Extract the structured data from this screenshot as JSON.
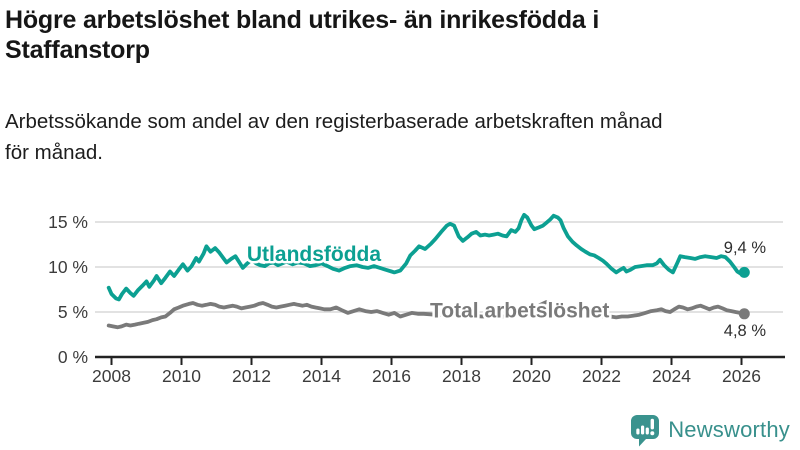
{
  "header": {
    "title_lines": [
      "Högre arbetslöshet bland utrikes- än inrikesfödda i",
      "Staffanstorp"
    ],
    "subtitle_lines": [
      "Arbetssökande som andel av den registerbaserade arbetskraften månad",
      "för månad."
    ]
  },
  "footer": {
    "brand": "Newsworthy",
    "brand_color": "#38908c",
    "logo_icon": "speech-bubble-bar-chart-exclamation"
  },
  "colors": {
    "foreign_born_line": "#0ca092",
    "total_line": "#7a7a7a",
    "grid": "#d9d9d9",
    "axis": "#222222",
    "tick_label": "#3c3c3c",
    "value_label": "#2e2e2e"
  },
  "chart_data": {
    "type": "line",
    "title": "Högre arbetslöshet bland utrikes- än inrikesfödda i Staffanstorp",
    "subtitle": "Arbetssökande som andel av den registerbaserade arbetskraften månad för månad.",
    "xlabel": "",
    "ylabel": "",
    "grid": "horizontal",
    "legend_position": "inline-labels",
    "xlim": [
      2007.5,
      2027.2
    ],
    "ylim": [
      0,
      16.5
    ],
    "x_ticks": [
      2008,
      2010,
      2012,
      2014,
      2016,
      2018,
      2020,
      2022,
      2024,
      2026
    ],
    "x_tick_labels": [
      "2008",
      "2010",
      "2012",
      "2014",
      "2016",
      "2018",
      "2020",
      "2022",
      "2024",
      "2026"
    ],
    "y_ticks": [
      0,
      5,
      10,
      15
    ],
    "y_tick_labels": [
      "0 %",
      "5 %",
      "10 %",
      "15 %"
    ],
    "series": [
      {
        "name": "Utlandsfödda",
        "color": "#0ca092",
        "end_value": 9.4,
        "end_label": "9,4 %",
        "points": [
          [
            2007.92,
            7.7
          ],
          [
            2008.0,
            7.0
          ],
          [
            2008.13,
            6.5
          ],
          [
            2008.21,
            6.4
          ],
          [
            2008.3,
            7.0
          ],
          [
            2008.42,
            7.6
          ],
          [
            2008.54,
            7.1
          ],
          [
            2008.63,
            6.8
          ],
          [
            2008.75,
            7.4
          ],
          [
            2008.88,
            7.9
          ],
          [
            2009.0,
            8.4
          ],
          [
            2009.08,
            7.8
          ],
          [
            2009.21,
            8.5
          ],
          [
            2009.29,
            9.0
          ],
          [
            2009.42,
            8.2
          ],
          [
            2009.54,
            8.8
          ],
          [
            2009.67,
            9.5
          ],
          [
            2009.79,
            9.0
          ],
          [
            2009.92,
            9.7
          ],
          [
            2010.04,
            10.3
          ],
          [
            2010.17,
            9.6
          ],
          [
            2010.29,
            10.1
          ],
          [
            2010.42,
            11.0
          ],
          [
            2010.5,
            10.6
          ],
          [
            2010.63,
            11.5
          ],
          [
            2010.71,
            12.3
          ],
          [
            2010.83,
            11.7
          ],
          [
            2010.96,
            12.1
          ],
          [
            2011.08,
            11.6
          ],
          [
            2011.21,
            10.9
          ],
          [
            2011.29,
            10.5
          ],
          [
            2011.42,
            10.9
          ],
          [
            2011.54,
            11.2
          ],
          [
            2011.67,
            10.4
          ],
          [
            2011.75,
            9.9
          ],
          [
            2011.88,
            10.4
          ],
          [
            2012.0,
            10.8
          ],
          [
            2012.13,
            10.4
          ],
          [
            2012.25,
            10.2
          ],
          [
            2012.38,
            10.1
          ],
          [
            2012.5,
            10.4
          ],
          [
            2012.63,
            10.5
          ],
          [
            2012.75,
            10.2
          ],
          [
            2012.88,
            10.4
          ],
          [
            2013.0,
            10.6
          ],
          [
            2013.17,
            10.3
          ],
          [
            2013.33,
            10.5
          ],
          [
            2013.5,
            10.4
          ],
          [
            2013.67,
            10.1
          ],
          [
            2013.83,
            10.2
          ],
          [
            2014.0,
            10.4
          ],
          [
            2014.17,
            10.1
          ],
          [
            2014.33,
            9.8
          ],
          [
            2014.5,
            9.6
          ],
          [
            2014.67,
            9.9
          ],
          [
            2014.83,
            10.1
          ],
          [
            2015.0,
            10.2
          ],
          [
            2015.17,
            10.0
          ],
          [
            2015.33,
            9.9
          ],
          [
            2015.5,
            10.1
          ],
          [
            2015.67,
            9.9
          ],
          [
            2015.83,
            9.7
          ],
          [
            2016.0,
            9.5
          ],
          [
            2016.08,
            9.4
          ],
          [
            2016.25,
            9.6
          ],
          [
            2016.42,
            10.4
          ],
          [
            2016.54,
            11.3
          ],
          [
            2016.67,
            11.8
          ],
          [
            2016.79,
            12.3
          ],
          [
            2016.96,
            12.0
          ],
          [
            2017.13,
            12.6
          ],
          [
            2017.25,
            13.1
          ],
          [
            2017.42,
            13.9
          ],
          [
            2017.58,
            14.6
          ],
          [
            2017.67,
            14.8
          ],
          [
            2017.79,
            14.6
          ],
          [
            2017.92,
            13.4
          ],
          [
            2018.04,
            12.9
          ],
          [
            2018.17,
            13.3
          ],
          [
            2018.29,
            13.7
          ],
          [
            2018.42,
            13.9
          ],
          [
            2018.54,
            13.5
          ],
          [
            2018.67,
            13.6
          ],
          [
            2018.79,
            13.5
          ],
          [
            2018.92,
            13.6
          ],
          [
            2019.04,
            13.7
          ],
          [
            2019.17,
            13.5
          ],
          [
            2019.29,
            13.4
          ],
          [
            2019.42,
            14.1
          ],
          [
            2019.54,
            13.9
          ],
          [
            2019.63,
            14.3
          ],
          [
            2019.71,
            15.2
          ],
          [
            2019.79,
            15.8
          ],
          [
            2019.88,
            15.5
          ],
          [
            2020.0,
            14.6
          ],
          [
            2020.08,
            14.2
          ],
          [
            2020.21,
            14.4
          ],
          [
            2020.33,
            14.6
          ],
          [
            2020.42,
            14.9
          ],
          [
            2020.54,
            15.3
          ],
          [
            2020.63,
            15.7
          ],
          [
            2020.75,
            15.5
          ],
          [
            2020.83,
            15.2
          ],
          [
            2020.92,
            14.3
          ],
          [
            2021.04,
            13.4
          ],
          [
            2021.17,
            12.8
          ],
          [
            2021.29,
            12.4
          ],
          [
            2021.42,
            12.0
          ],
          [
            2021.54,
            11.7
          ],
          [
            2021.67,
            11.4
          ],
          [
            2021.79,
            11.3
          ],
          [
            2021.92,
            11.0
          ],
          [
            2022.04,
            10.7
          ],
          [
            2022.13,
            10.4
          ],
          [
            2022.29,
            9.8
          ],
          [
            2022.42,
            9.4
          ],
          [
            2022.54,
            9.7
          ],
          [
            2022.63,
            9.9
          ],
          [
            2022.71,
            9.5
          ],
          [
            2022.83,
            9.7
          ],
          [
            2022.96,
            10.0
          ],
          [
            2023.13,
            10.1
          ],
          [
            2023.29,
            10.2
          ],
          [
            2023.46,
            10.2
          ],
          [
            2023.58,
            10.4
          ],
          [
            2023.67,
            10.8
          ],
          [
            2023.79,
            10.2
          ],
          [
            2023.92,
            9.7
          ],
          [
            2024.04,
            9.4
          ],
          [
            2024.17,
            10.5
          ],
          [
            2024.25,
            11.2
          ],
          [
            2024.38,
            11.1
          ],
          [
            2024.54,
            11.0
          ],
          [
            2024.67,
            10.9
          ],
          [
            2024.83,
            11.1
          ],
          [
            2024.96,
            11.2
          ],
          [
            2025.13,
            11.1
          ],
          [
            2025.29,
            11.0
          ],
          [
            2025.42,
            11.2
          ],
          [
            2025.54,
            11.1
          ],
          [
            2025.67,
            10.6
          ],
          [
            2025.79,
            10.0
          ],
          [
            2025.88,
            9.5
          ],
          [
            2025.96,
            9.3
          ],
          [
            2026.08,
            9.4
          ]
        ]
      },
      {
        "name": "Total arbetslöshet",
        "color": "#7a7a7a",
        "end_value": 4.8,
        "end_label": "4,8 %",
        "points": [
          [
            2007.92,
            3.5
          ],
          [
            2008.04,
            3.4
          ],
          [
            2008.17,
            3.3
          ],
          [
            2008.29,
            3.4
          ],
          [
            2008.42,
            3.6
          ],
          [
            2008.54,
            3.5
          ],
          [
            2008.67,
            3.6
          ],
          [
            2008.79,
            3.7
          ],
          [
            2008.92,
            3.8
          ],
          [
            2009.04,
            3.9
          ],
          [
            2009.17,
            4.1
          ],
          [
            2009.29,
            4.2
          ],
          [
            2009.42,
            4.4
          ],
          [
            2009.54,
            4.5
          ],
          [
            2009.67,
            4.9
          ],
          [
            2009.79,
            5.3
          ],
          [
            2009.92,
            5.5
          ],
          [
            2010.04,
            5.7
          ],
          [
            2010.21,
            5.9
          ],
          [
            2010.33,
            6.0
          ],
          [
            2010.46,
            5.8
          ],
          [
            2010.58,
            5.7
          ],
          [
            2010.71,
            5.8
          ],
          [
            2010.83,
            5.9
          ],
          [
            2010.96,
            5.8
          ],
          [
            2011.08,
            5.6
          ],
          [
            2011.21,
            5.5
          ],
          [
            2011.33,
            5.6
          ],
          [
            2011.46,
            5.7
          ],
          [
            2011.58,
            5.6
          ],
          [
            2011.71,
            5.4
          ],
          [
            2011.83,
            5.5
          ],
          [
            2011.96,
            5.6
          ],
          [
            2012.08,
            5.7
          ],
          [
            2012.21,
            5.9
          ],
          [
            2012.33,
            6.0
          ],
          [
            2012.46,
            5.8
          ],
          [
            2012.58,
            5.6
          ],
          [
            2012.71,
            5.5
          ],
          [
            2012.83,
            5.6
          ],
          [
            2012.96,
            5.7
          ],
          [
            2013.08,
            5.8
          ],
          [
            2013.21,
            5.9
          ],
          [
            2013.33,
            5.8
          ],
          [
            2013.46,
            5.7
          ],
          [
            2013.58,
            5.8
          ],
          [
            2013.71,
            5.6
          ],
          [
            2013.83,
            5.5
          ],
          [
            2013.96,
            5.4
          ],
          [
            2014.08,
            5.3
          ],
          [
            2014.25,
            5.3
          ],
          [
            2014.42,
            5.5
          ],
          [
            2014.58,
            5.2
          ],
          [
            2014.75,
            4.9
          ],
          [
            2014.92,
            5.1
          ],
          [
            2015.08,
            5.3
          ],
          [
            2015.25,
            5.1
          ],
          [
            2015.42,
            5.0
          ],
          [
            2015.58,
            5.1
          ],
          [
            2015.75,
            4.9
          ],
          [
            2015.92,
            4.7
          ],
          [
            2016.08,
            4.9
          ],
          [
            2016.25,
            4.5
          ],
          [
            2016.42,
            4.7
          ],
          [
            2016.58,
            4.9
          ],
          [
            2016.75,
            4.8
          ],
          [
            2016.92,
            4.8
          ],
          [
            2017.25,
            4.7
          ],
          [
            2017.58,
            4.7
          ],
          [
            2017.92,
            4.6
          ],
          [
            2018.25,
            4.6
          ],
          [
            2018.58,
            4.5
          ],
          [
            2018.92,
            4.5
          ],
          [
            2019.25,
            4.5
          ],
          [
            2019.58,
            4.6
          ],
          [
            2019.92,
            4.8
          ],
          [
            2020.08,
            5.2
          ],
          [
            2020.25,
            5.8
          ],
          [
            2020.42,
            6.1
          ],
          [
            2020.58,
            6.0
          ],
          [
            2020.75,
            5.8
          ],
          [
            2020.92,
            5.5
          ],
          [
            2021.08,
            5.2
          ],
          [
            2021.25,
            5.0
          ],
          [
            2021.42,
            4.9
          ],
          [
            2021.58,
            4.8
          ],
          [
            2021.75,
            4.7
          ],
          [
            2021.92,
            4.6
          ],
          [
            2022.08,
            4.5
          ],
          [
            2022.25,
            4.5
          ],
          [
            2022.42,
            4.4
          ],
          [
            2022.58,
            4.5
          ],
          [
            2022.75,
            4.5
          ],
          [
            2022.92,
            4.6
          ],
          [
            2023.08,
            4.7
          ],
          [
            2023.25,
            4.9
          ],
          [
            2023.42,
            5.1
          ],
          [
            2023.58,
            5.2
          ],
          [
            2023.71,
            5.3
          ],
          [
            2023.83,
            5.1
          ],
          [
            2023.96,
            5.0
          ],
          [
            2024.08,
            5.3
          ],
          [
            2024.21,
            5.6
          ],
          [
            2024.33,
            5.5
          ],
          [
            2024.46,
            5.3
          ],
          [
            2024.58,
            5.4
          ],
          [
            2024.71,
            5.6
          ],
          [
            2024.83,
            5.7
          ],
          [
            2024.96,
            5.5
          ],
          [
            2025.08,
            5.3
          ],
          [
            2025.21,
            5.5
          ],
          [
            2025.33,
            5.6
          ],
          [
            2025.46,
            5.4
          ],
          [
            2025.58,
            5.2
          ],
          [
            2025.71,
            5.1
          ],
          [
            2025.83,
            5.0
          ],
          [
            2025.96,
            4.9
          ],
          [
            2026.08,
            4.8
          ]
        ]
      }
    ]
  }
}
